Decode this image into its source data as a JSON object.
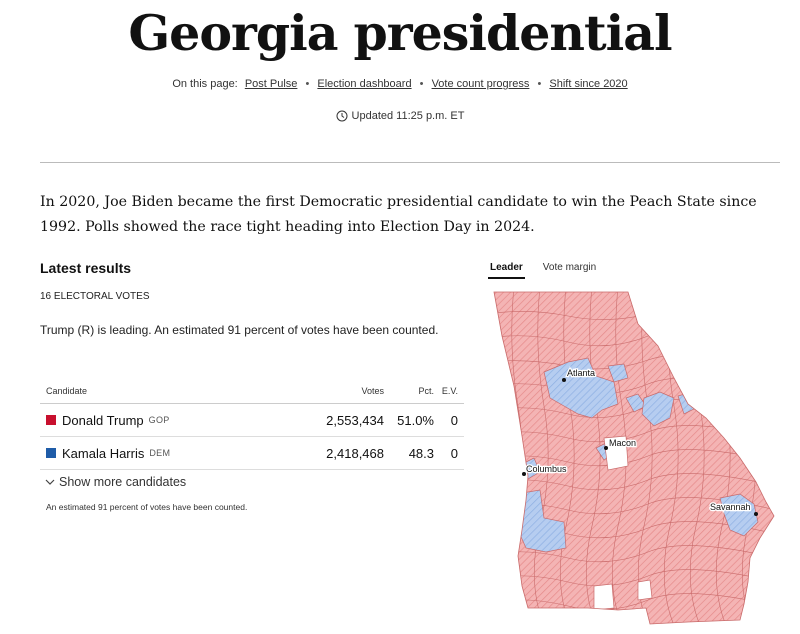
{
  "header": {
    "title": "Georgia presidential",
    "on_this_page_label": "On this page:",
    "links": [
      "Post Pulse",
      "Election dashboard",
      "Vote count progress",
      "Shift since 2020"
    ],
    "separator": "•",
    "updated": "Updated 11:25 p.m. ET"
  },
  "intro": "In 2020, Joe Biden became the first Democratic presidential candidate to win the Peach State since 1992. Polls showed the race tight heading into Election Day in 2024.",
  "results": {
    "heading": "Latest results",
    "electoral_votes": "16 ELECTORAL VOTES",
    "status": "Trump (R) is leading. An estimated 91 percent of votes have been counted.",
    "columns": {
      "candidate": "Candidate",
      "votes": "Votes",
      "pct": "Pct.",
      "ev": "E.V."
    },
    "candidates": [
      {
        "name": "Donald Trump",
        "party": "GOP",
        "votes": "2,553,434",
        "pct": "51.0%",
        "ev": "0",
        "color": "#c8102e"
      },
      {
        "name": "Kamala Harris",
        "party": "DEM",
        "votes": "2,418,468",
        "pct": "48.3",
        "ev": "0",
        "color": "#1f5ca8"
      }
    ],
    "show_more": "Show more candidates",
    "footnote": "An estimated 91 percent of votes have been counted."
  },
  "map": {
    "tabs": [
      "Leader",
      "Vote margin"
    ],
    "active_tab": "Leader",
    "cities": [
      "Atlanta",
      "Macon",
      "Columbus",
      "Savannah"
    ],
    "colors": {
      "gop": "#f2a7a7",
      "dem": "#a9c4ec",
      "border": "#c85a5a",
      "no_result": "#ffffff"
    }
  }
}
